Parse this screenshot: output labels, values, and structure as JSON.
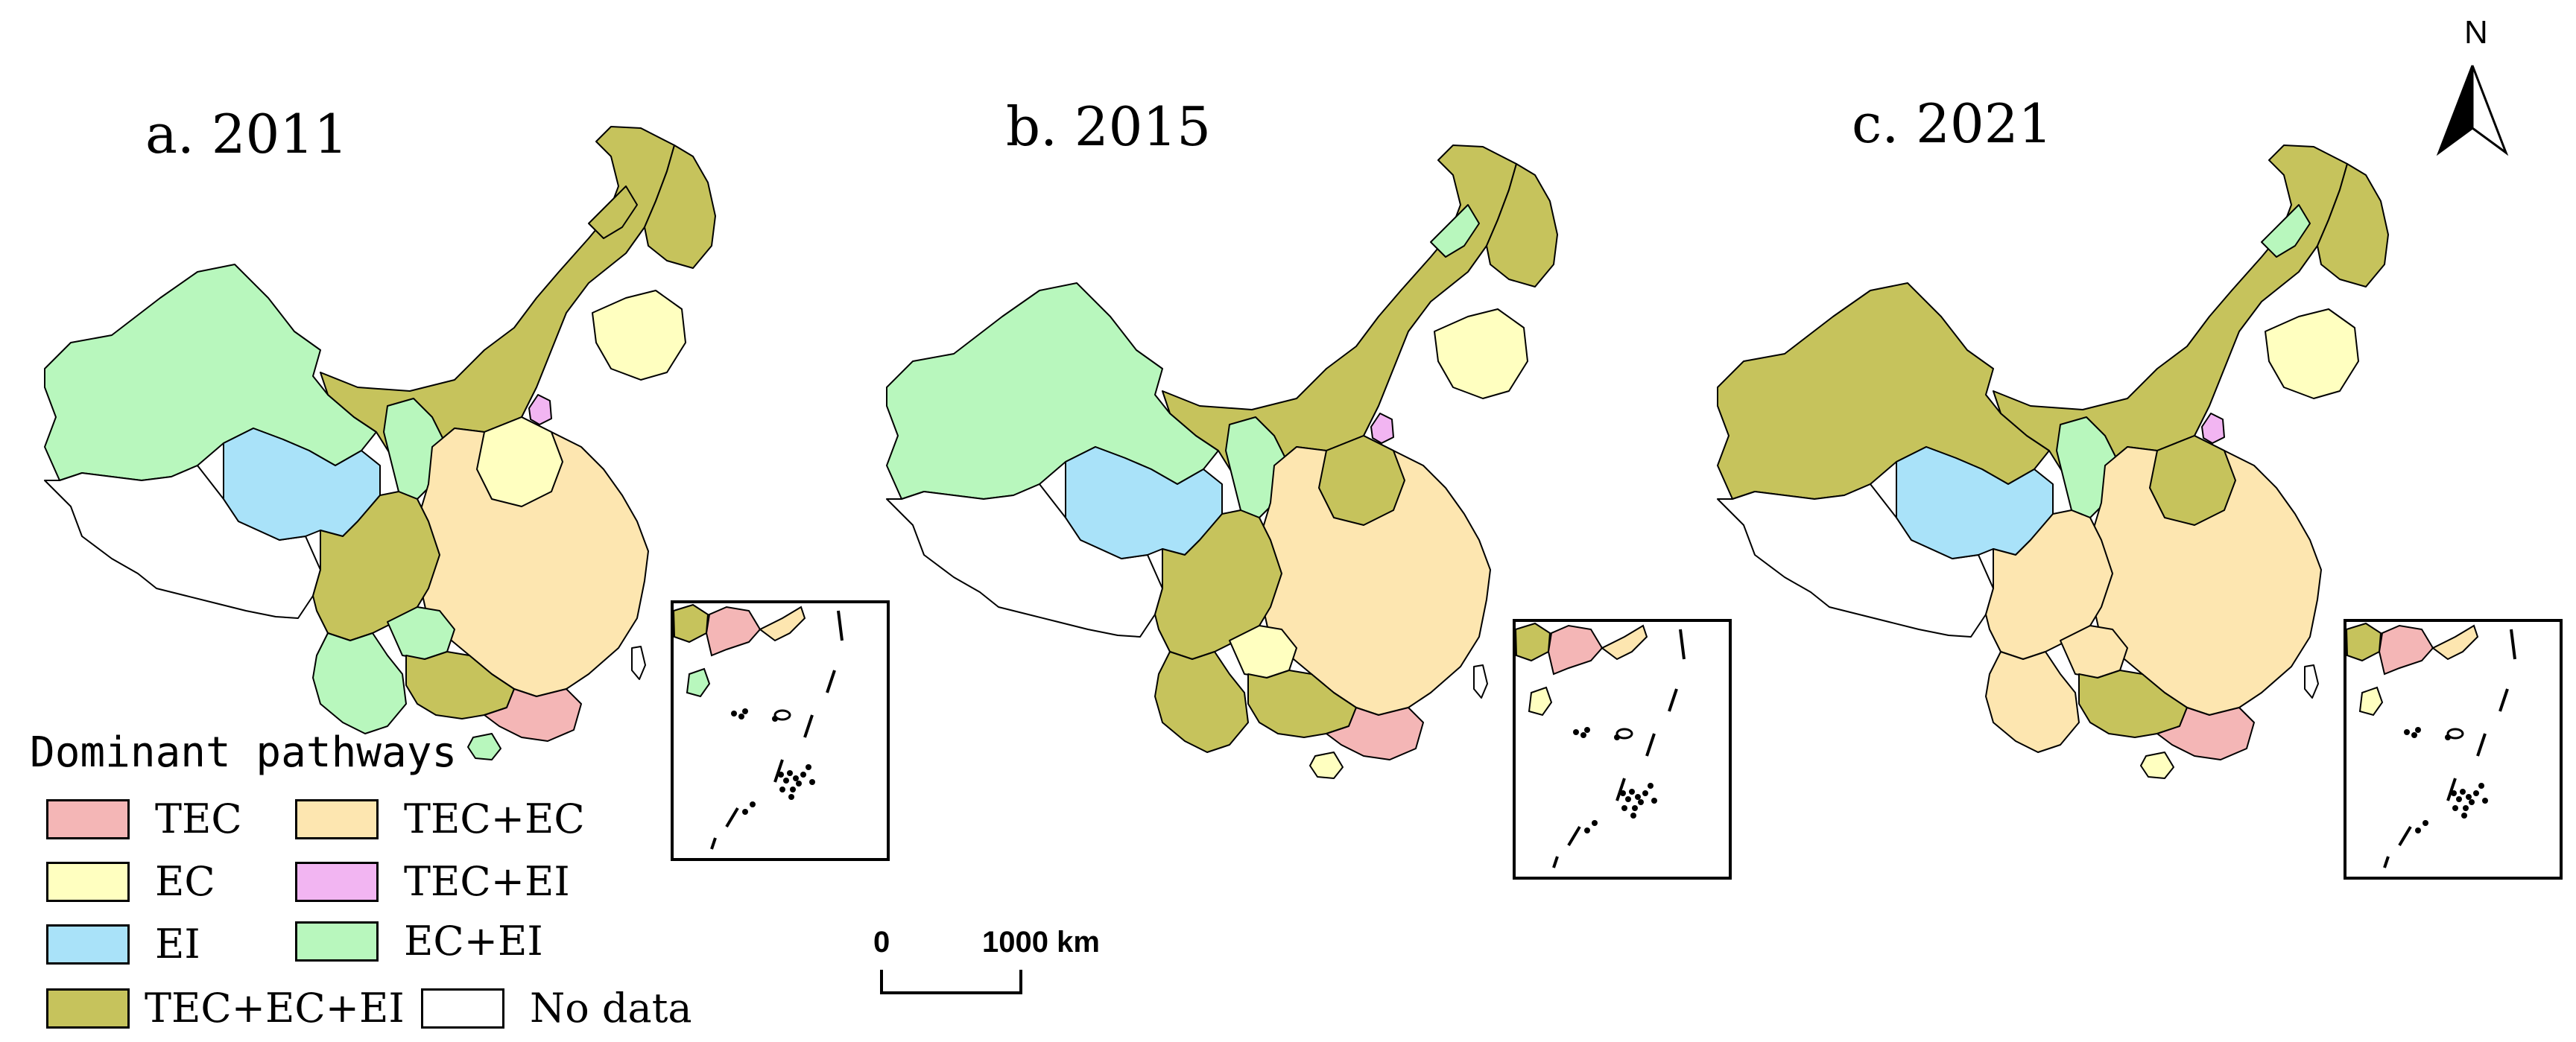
{
  "colors": {
    "TEC": "#f4b6b6",
    "EC": "#ffffc0",
    "EI": "#a9e2f9",
    "TEC+EC": "#fde6b0",
    "TEC+EI": "#f2b5f2",
    "EC+EI": "#b8f7bd",
    "TEC+EC+EI": "#c6c35c",
    "No data": "#ffffff"
  },
  "panels": [
    {
      "title": "a. 2011",
      "zones": {
        "northwest": "EC+EI",
        "tibet": "No data",
        "qinghai": "EI",
        "north": "TEC+EC+EI",
        "northeast": "TEC+EC+EI",
        "northeast_tip": "TEC+EC+EI",
        "liaoning": "EC",
        "beijing": "TEC+EI",
        "ningxia": "EC+EI",
        "central": "TEC+EC",
        "shanxi": "EC",
        "southwest": "TEC+EC+EI",
        "yunnan": "EC+EI",
        "guizhou": "EC+EI",
        "guangxi": "TEC+EC+EI",
        "guangdong": "TEC",
        "hainan": "EC+EI",
        "taiwan": "No data"
      }
    },
    {
      "title": "b. 2015",
      "zones": {
        "northwest": "EC+EI",
        "tibet": "No data",
        "qinghai": "EI",
        "north": "TEC+EC+EI",
        "northeast": "TEC+EC+EI",
        "northeast_tip": "EC+EI",
        "liaoning": "EC",
        "beijing": "TEC+EI",
        "ningxia": "EC+EI",
        "central": "TEC+EC",
        "shanxi": "TEC+EC+EI",
        "southwest": "TEC+EC+EI",
        "yunnan": "TEC+EC+EI",
        "guizhou": "EC",
        "guangxi": "TEC+EC+EI",
        "guangdong": "TEC",
        "hainan": "EC",
        "taiwan": "No data"
      }
    },
    {
      "title": "c. 2021",
      "zones": {
        "northwest": "TEC+EC+EI",
        "tibet": "No data",
        "qinghai": "EI",
        "north": "TEC+EC+EI",
        "northeast": "TEC+EC+EI",
        "northeast_tip": "EC+EI",
        "liaoning": "EC",
        "beijing": "TEC+EI",
        "ningxia": "EC+EI",
        "central": "TEC+EC",
        "shanxi": "TEC+EC+EI",
        "southwest": "TEC+EC",
        "yunnan": "TEC+EC",
        "guizhou": "TEC+EC",
        "guangxi": "TEC+EC+EI",
        "guangdong": "TEC",
        "hainan": "EC",
        "taiwan": "No data"
      }
    }
  ],
  "legend": {
    "title": "Dominant pathways",
    "items": [
      {
        "key": "TEC",
        "label": "TEC"
      },
      {
        "key": "TEC+EC",
        "label": "TEC+EC"
      },
      {
        "key": "EC",
        "label": "EC"
      },
      {
        "key": "TEC+EI",
        "label": "TEC+EI"
      },
      {
        "key": "EI",
        "label": "EI"
      },
      {
        "key": "EC+EI",
        "label": "EC+EI"
      },
      {
        "key": "TEC+EC+EI",
        "label": "TEC+EC+EI"
      },
      {
        "key": "No data",
        "label": "No data"
      }
    ]
  },
  "scale_bar": {
    "start_label": "0",
    "end_label": "1000 km"
  },
  "north_arrow": {
    "label": "N",
    "icon": "north-arrow-icon"
  }
}
